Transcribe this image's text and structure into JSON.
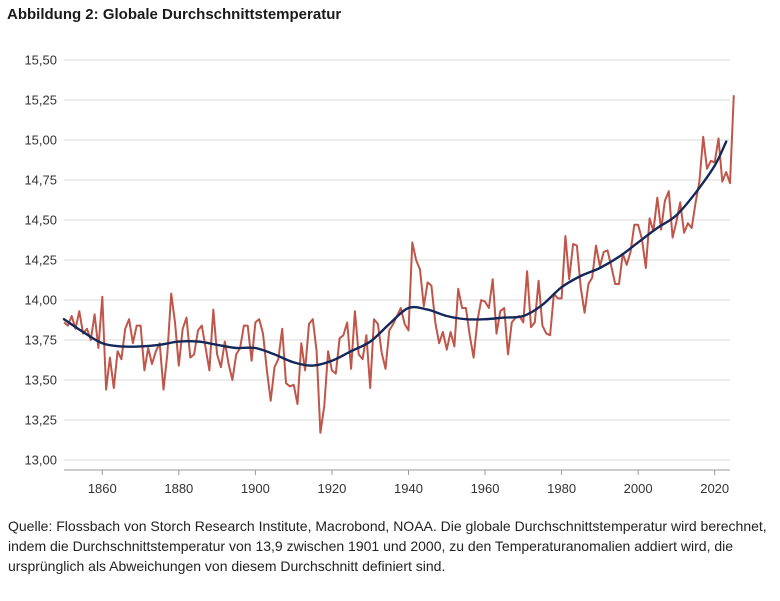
{
  "figure_title": "Abbildung 2: Globale Durchschnittstemperatur",
  "caption": "Quelle: Flossbach von Storch Research Institute, Macrobond, NOAA. Die globale Durchschnittstemperatur wird berechnet, indem die Durchschnittstemperatur von 13,9 zwischen 1901 und 2000, zu den Temperaturanomalien addiert wird, die ursprünglich als Abweichungen von diesem Durchschnitt definiert sind.",
  "colors": {
    "annual": "#c0564a",
    "trend": "#14285a",
    "grid": "#d9d9d9",
    "axis": "#999999"
  },
  "chart_data": {
    "type": "line",
    "title": "",
    "xlabel": "",
    "ylabel": "",
    "xlim": [
      1850,
      2024
    ],
    "ylim": [
      13.0,
      15.5
    ],
    "grid": "horizontal",
    "legend": "none",
    "x_ticks": [
      1860,
      1880,
      1900,
      1920,
      1940,
      1960,
      1980,
      2000,
      2020
    ],
    "x_tick_labels": [
      "1860",
      "1880",
      "1900",
      "1920",
      "1940",
      "1960",
      "1980",
      "2000",
      "2020"
    ],
    "y_ticks": [
      13.0,
      13.25,
      13.5,
      13.75,
      14.0,
      14.25,
      14.5,
      14.75,
      15.0,
      15.25,
      15.5
    ],
    "y_tick_labels": [
      "13,00",
      "13,25",
      "13,50",
      "13,75",
      "14,00",
      "14,25",
      "14,50",
      "14,75",
      "15,00",
      "15,25",
      "15,50"
    ],
    "series": [
      {
        "x_start": 1850,
        "x_step": 1,
        "values": [
          13.86,
          13.84,
          13.9,
          13.82,
          13.93,
          13.79,
          13.82,
          13.75,
          13.91,
          13.7,
          14.02,
          13.44,
          13.64,
          13.45,
          13.68,
          13.63,
          13.82,
          13.88,
          13.73,
          13.84,
          13.84,
          13.56,
          13.7,
          13.6,
          13.68,
          13.73,
          13.44,
          13.66,
          14.04,
          13.86,
          13.59,
          13.82,
          13.89,
          13.64,
          13.66,
          13.81,
          13.84,
          13.7,
          13.56,
          13.94,
          13.66,
          13.58,
          13.74,
          13.6,
          13.5,
          13.66,
          13.7,
          13.84,
          13.84,
          13.62,
          13.86,
          13.88,
          13.79,
          13.56,
          13.37,
          13.58,
          13.63,
          13.82,
          13.48,
          13.46,
          13.47,
          13.35,
          13.73,
          13.56,
          13.85,
          13.88,
          13.68,
          13.17,
          13.34,
          13.68,
          13.56,
          13.54,
          13.76,
          13.78,
          13.86,
          13.57,
          13.93,
          13.66,
          13.63,
          13.78,
          13.45,
          13.88,
          13.85,
          13.67,
          13.57,
          13.81,
          13.85,
          13.9,
          13.95,
          13.85,
          13.81,
          14.36,
          14.25,
          14.19,
          13.96,
          14.11,
          14.09,
          13.86,
          13.73,
          13.8,
          13.69,
          13.8,
          13.71,
          14.07,
          13.95,
          13.95,
          13.78,
          13.64,
          13.87,
          14.0,
          13.99,
          13.95,
          14.13,
          13.79,
          13.93,
          13.95,
          13.66,
          13.86,
          13.89,
          13.9,
          13.86,
          14.18,
          13.83,
          13.86,
          14.12,
          13.84,
          13.79,
          13.78,
          14.04,
          14.01,
          14.01,
          14.4,
          14.13,
          14.35,
          14.34,
          14.08,
          13.92,
          14.1,
          14.14,
          14.34,
          14.21,
          14.3,
          14.31,
          14.21,
          14.1,
          14.1,
          14.29,
          14.22,
          14.3,
          14.47,
          14.47,
          14.38,
          14.2,
          14.51,
          14.43,
          14.64,
          14.44,
          14.62,
          14.68,
          14.39,
          14.49,
          14.61,
          14.42,
          14.48,
          14.45,
          14.61,
          14.74,
          15.02,
          14.82,
          14.87,
          14.86,
          15.01,
          14.74,
          14.8,
          14.73,
          15.28
        ]
      },
      {
        "x": [
          1850,
          1855,
          1860,
          1865,
          1870,
          1875,
          1880,
          1885,
          1890,
          1895,
          1900,
          1905,
          1910,
          1915,
          1920,
          1925,
          1930,
          1935,
          1940,
          1945,
          1950,
          1955,
          1960,
          1965,
          1970,
          1975,
          1980,
          1985,
          1990,
          1995,
          2000,
          2005,
          2010,
          2015,
          2020,
          2023
        ],
        "values": [
          13.88,
          13.8,
          13.73,
          13.71,
          13.71,
          13.72,
          13.74,
          13.74,
          13.72,
          13.7,
          13.7,
          13.66,
          13.61,
          13.59,
          13.62,
          13.68,
          13.74,
          13.85,
          13.95,
          13.94,
          13.9,
          13.88,
          13.88,
          13.89,
          13.9,
          13.97,
          14.08,
          14.15,
          14.2,
          14.27,
          14.36,
          14.45,
          14.53,
          14.67,
          14.84,
          14.99
        ]
      }
    ]
  }
}
